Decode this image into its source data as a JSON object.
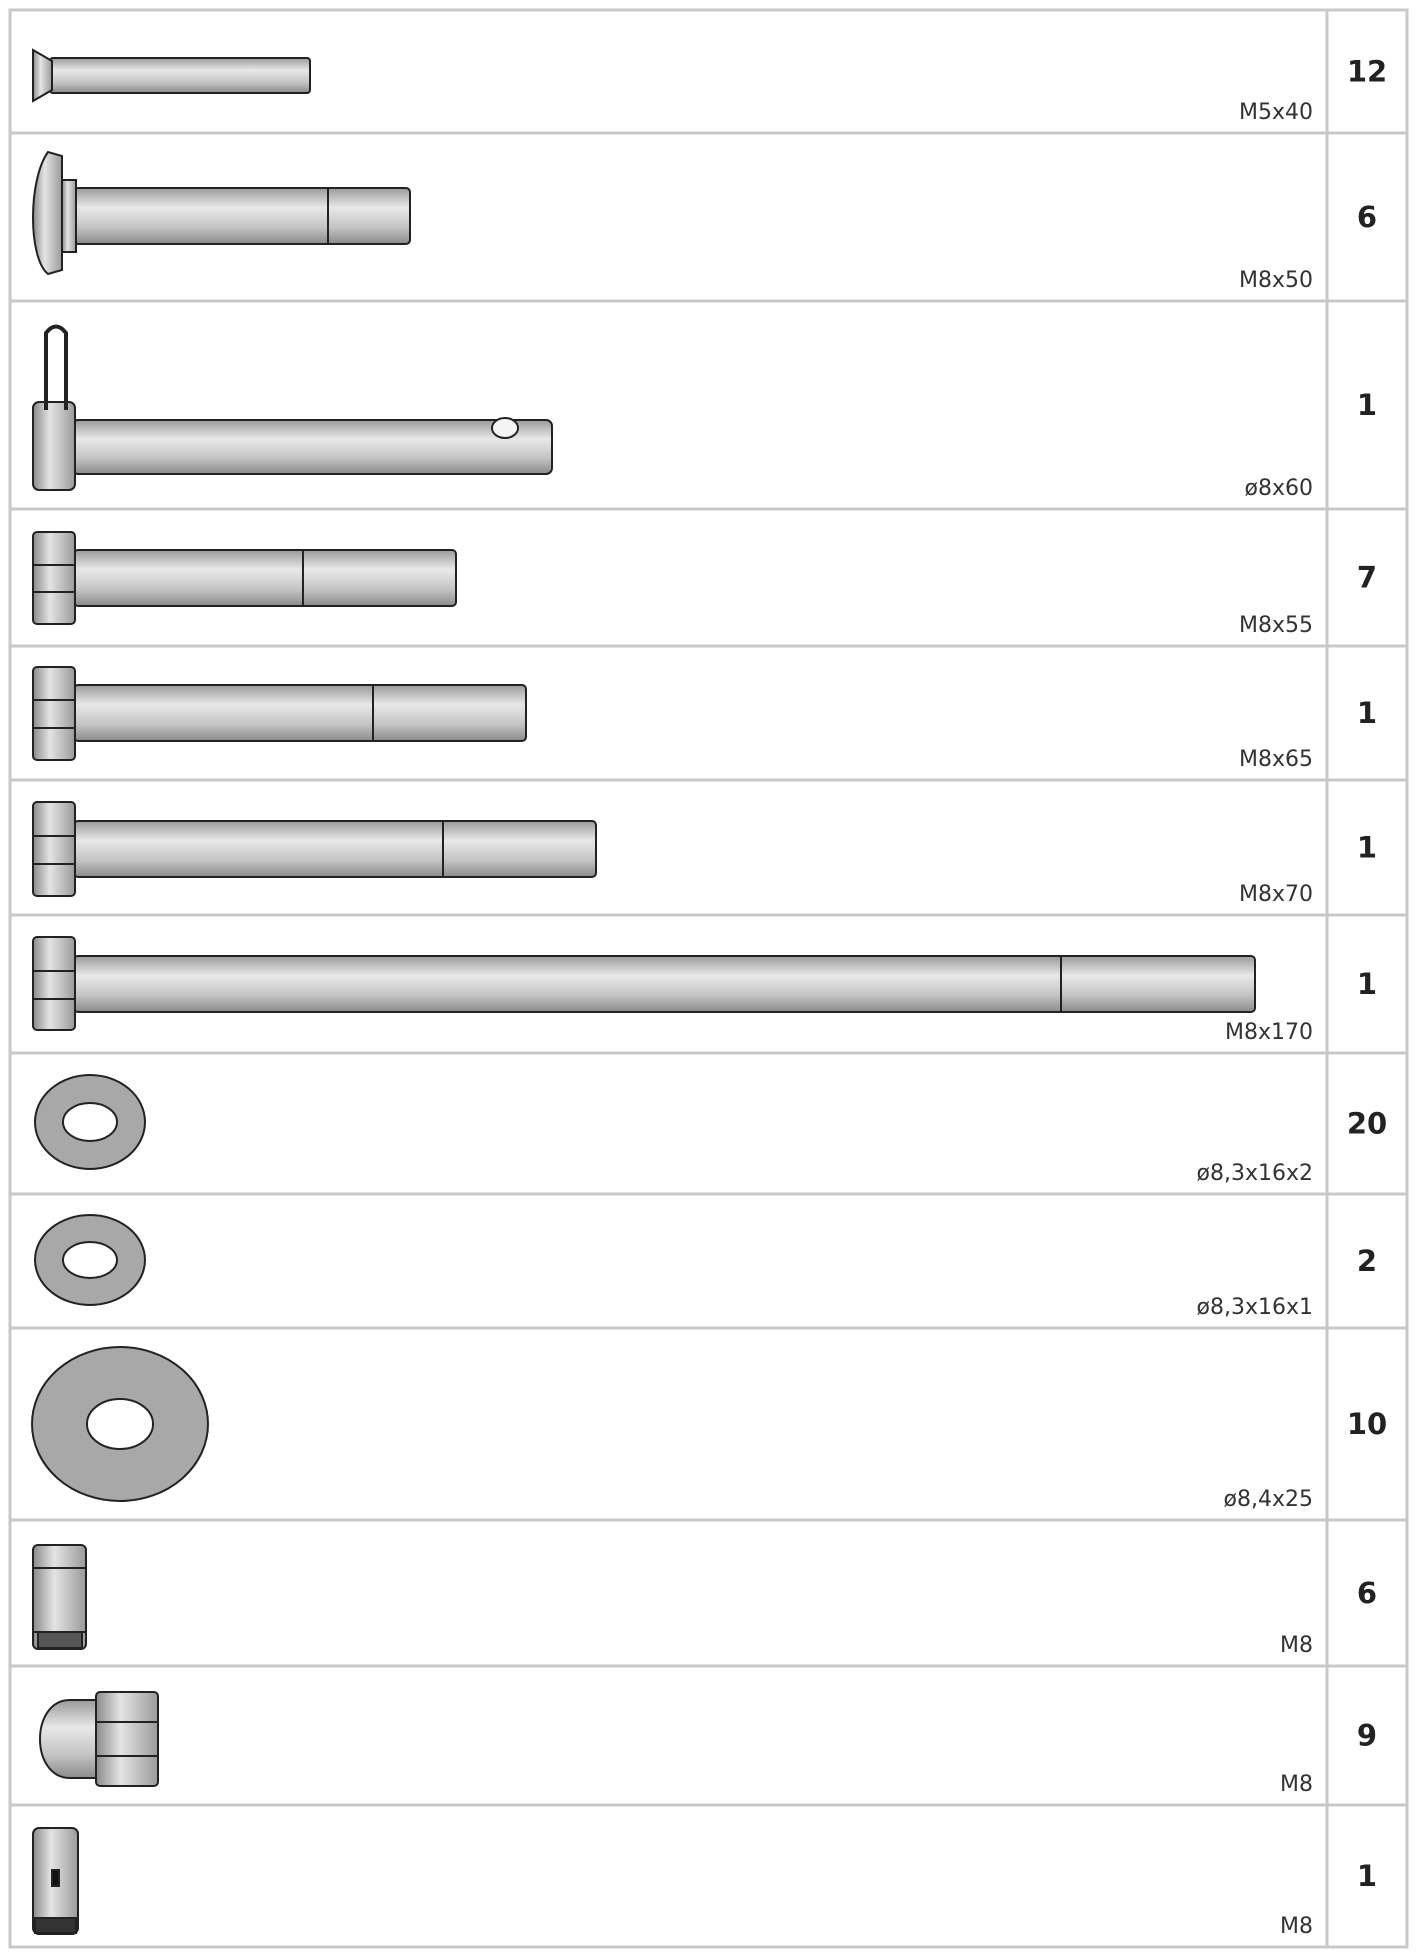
{
  "parts": [
    {
      "size": "M5x40",
      "quantity": 12
    },
    {
      "size": "M8x50",
      "quantity": 6
    },
    {
      "size": "ø8x60",
      "quantity": 1
    },
    {
      "size": "M8x55",
      "quantity": 7
    },
    {
      "size": "M8x65",
      "quantity": 1
    },
    {
      "size": "M8x70",
      "quantity": 1
    },
    {
      "size": "M8x170",
      "quantity": 1
    },
    {
      "size": "ø8,3x16x2",
      "quantity": 20
    },
    {
      "size": "ø8,3x16x1",
      "quantity": 2
    },
    {
      "size": "ø8,4x25",
      "quantity": 10
    },
    {
      "size": "M8",
      "quantity": 6
    },
    {
      "size": "M8",
      "quantity": 9
    },
    {
      "size": "M8",
      "quantity": 1
    }
  ]
}
